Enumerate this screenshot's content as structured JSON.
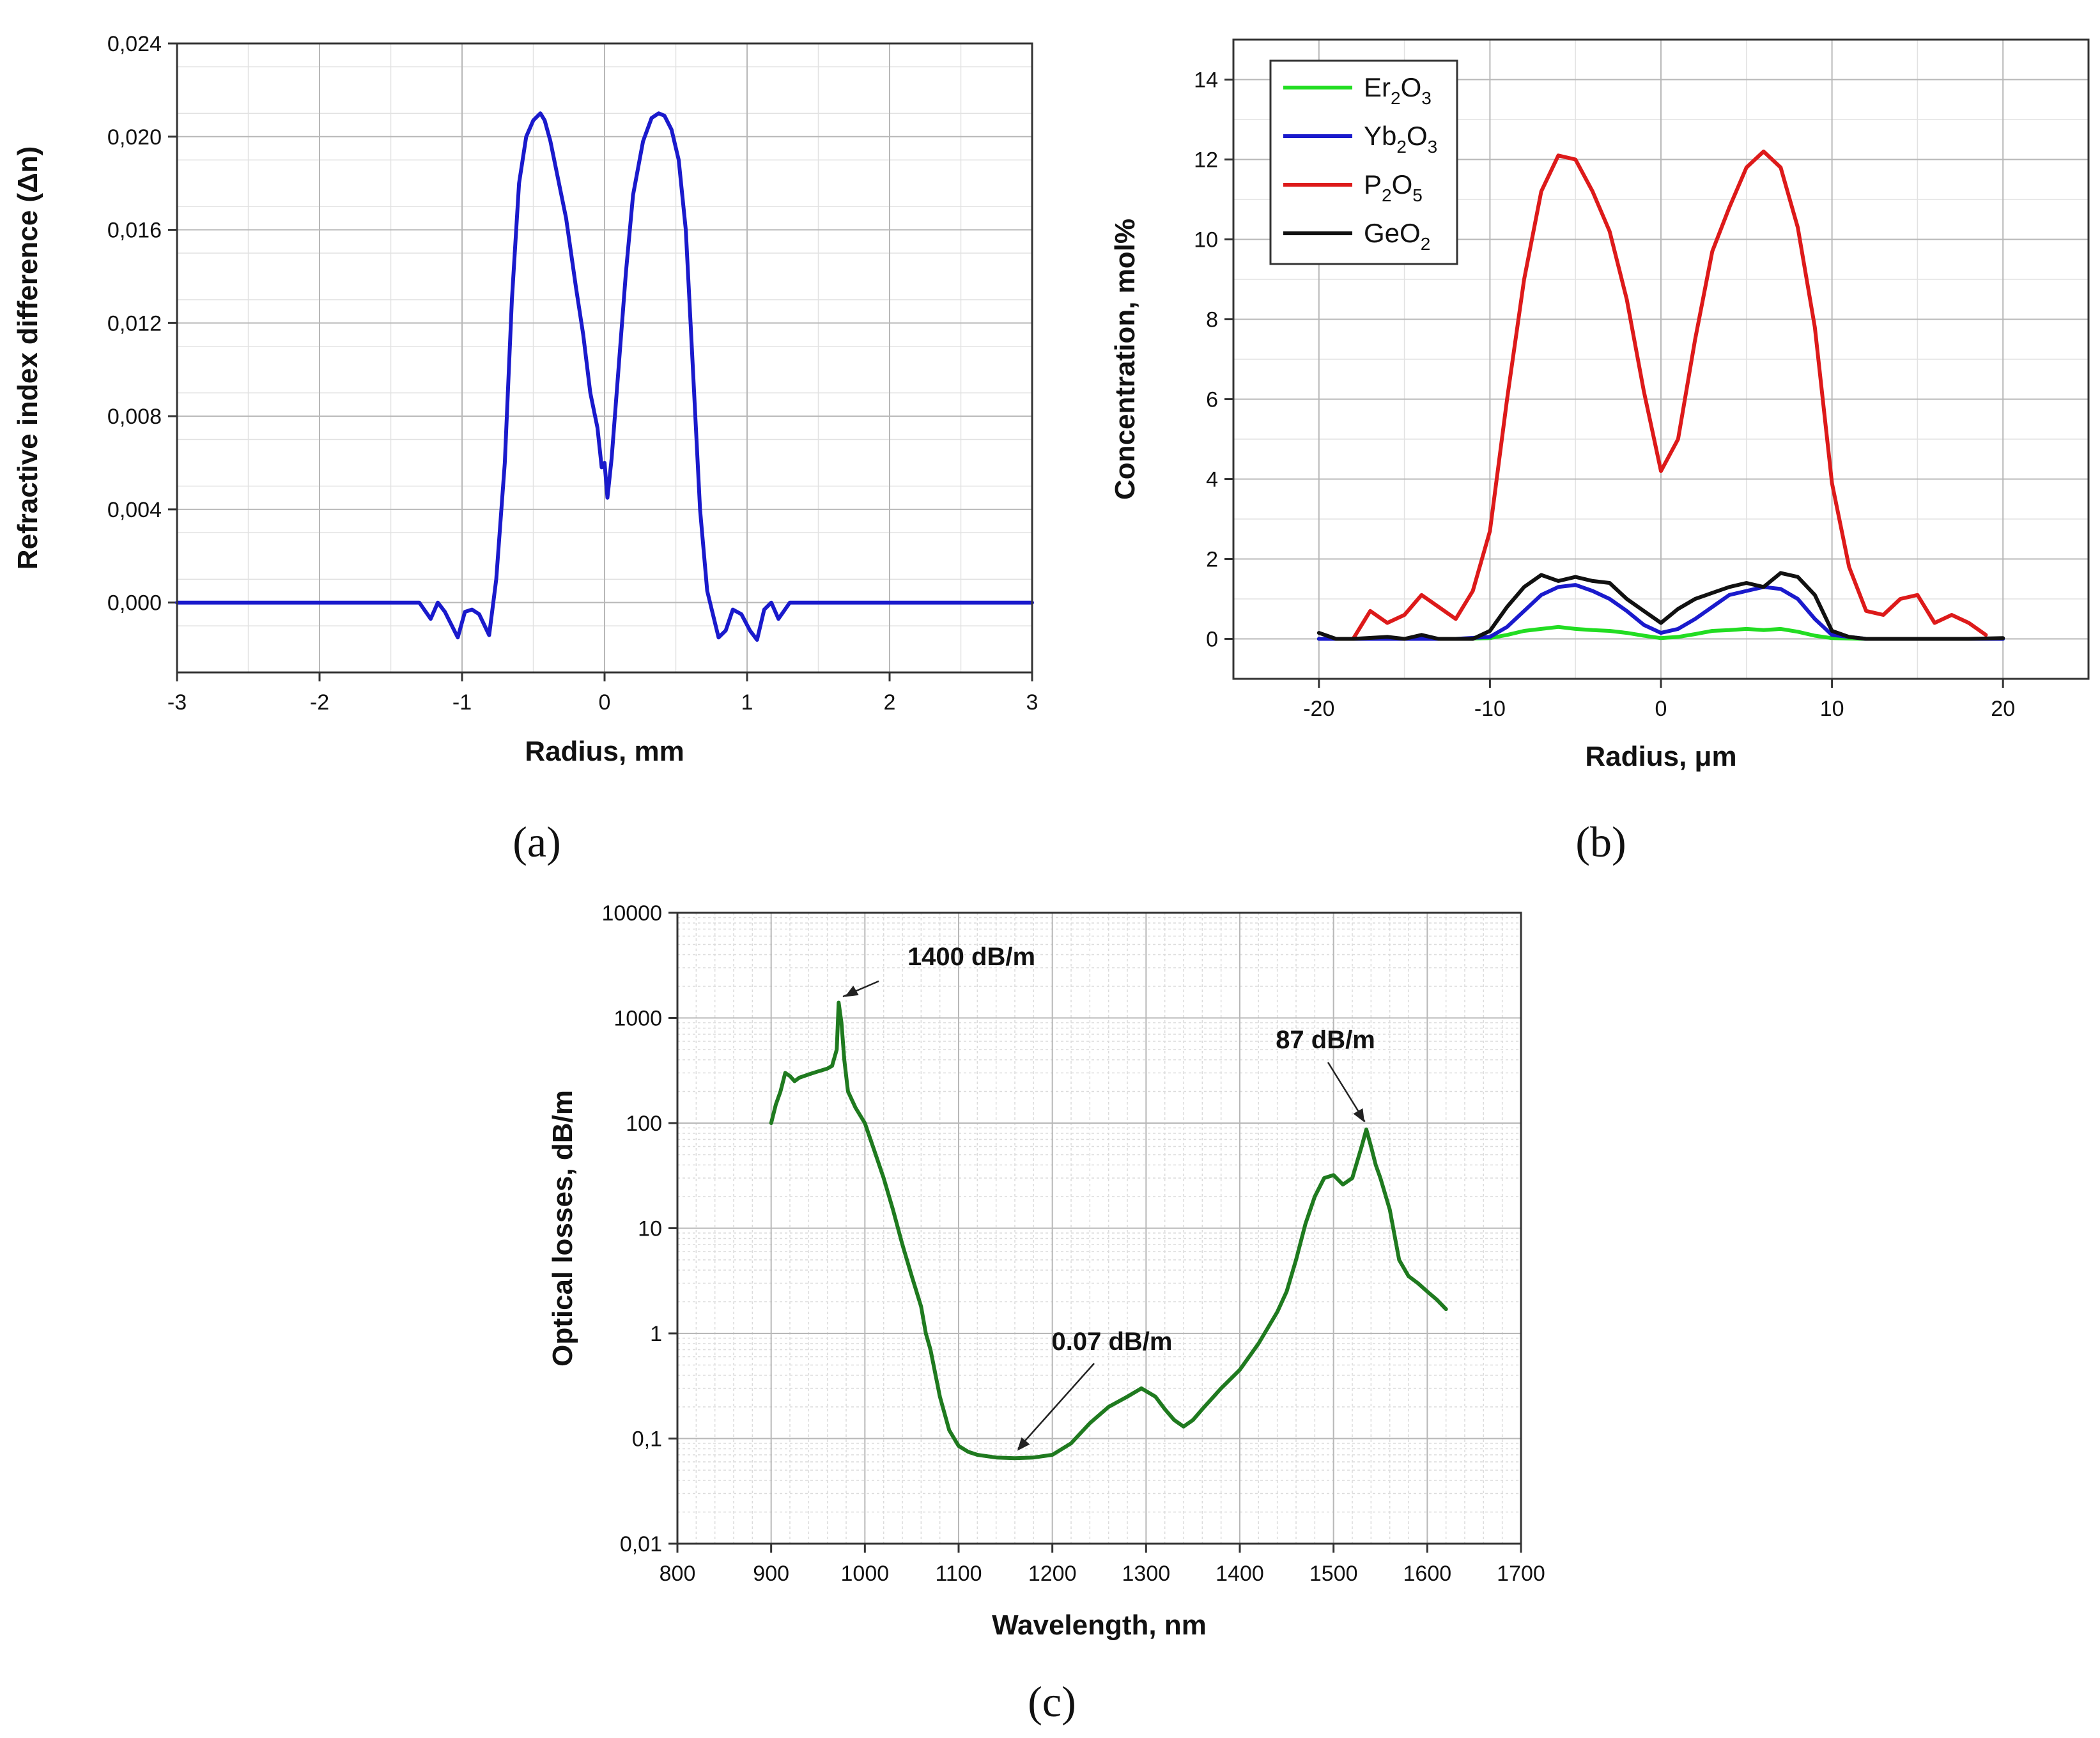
{
  "chart_data": [
    {
      "id": "a",
      "panel_label": "(a)",
      "type": "line",
      "title": "",
      "xlabel": "Radius, mm",
      "ylabel": "Refractive index difference (Δn)",
      "xlim": [
        -3,
        3
      ],
      "ylim": [
        -0.003,
        0.024
      ],
      "xticks": [
        -3,
        -2,
        -1,
        0,
        1,
        2,
        3
      ],
      "xtick_labels": [
        "-3",
        "-2",
        "-1",
        "0",
        "1",
        "2",
        "3"
      ],
      "yticks": [
        0.0,
        0.004,
        0.008,
        0.012,
        0.016,
        0.02,
        0.024
      ],
      "ytick_labels": [
        "0,000",
        "0,004",
        "0,008",
        "0,012",
        "0,016",
        "0,020",
        "0,024"
      ],
      "grid": true,
      "series": [
        {
          "name": "Δn",
          "color": "#1a1acc",
          "x": [
            -3.0,
            -1.3,
            -1.22,
            -1.17,
            -1.12,
            -1.03,
            -0.98,
            -0.93,
            -0.88,
            -0.81,
            -0.76,
            -0.7,
            -0.65,
            -0.6,
            -0.55,
            -0.5,
            -0.45,
            -0.42,
            -0.38,
            -0.33,
            -0.27,
            -0.2,
            -0.15,
            -0.1,
            -0.05,
            -0.02,
            0.0,
            0.02,
            0.05,
            0.1,
            0.15,
            0.2,
            0.27,
            0.33,
            0.38,
            0.42,
            0.47,
            0.52,
            0.57,
            0.62,
            0.67,
            0.72,
            0.76,
            0.8,
            0.85,
            0.9,
            0.96,
            1.02,
            1.07,
            1.12,
            1.17,
            1.22,
            1.3,
            3.0
          ],
          "y": [
            0.0,
            0.0,
            -0.0007,
            0.0,
            -0.0004,
            -0.0015,
            -0.0004,
            -0.0003,
            -0.0005,
            -0.0014,
            0.001,
            0.006,
            0.013,
            0.018,
            0.02,
            0.0207,
            0.021,
            0.0207,
            0.0198,
            0.0183,
            0.0165,
            0.0135,
            0.0115,
            0.009,
            0.0075,
            0.0058,
            0.006,
            0.0045,
            0.0062,
            0.0102,
            0.0142,
            0.0175,
            0.0198,
            0.0208,
            0.021,
            0.0209,
            0.0203,
            0.019,
            0.016,
            0.01,
            0.004,
            0.0005,
            -0.0005,
            -0.0015,
            -0.0012,
            -0.0003,
            -0.0005,
            -0.0012,
            -0.0016,
            -0.0003,
            0.0,
            -0.0007,
            0.0,
            0.0
          ]
        }
      ]
    },
    {
      "id": "b",
      "panel_label": "(b)",
      "type": "line",
      "title": "",
      "xlabel": "Radius, μm",
      "ylabel": "Concentration, mol%",
      "xlim": [
        -25,
        25
      ],
      "ylim": [
        -1,
        15
      ],
      "xticks": [
        -20,
        -10,
        0,
        10,
        20
      ],
      "xtick_labels": [
        "-20",
        "-10",
        "0",
        "10",
        "20"
      ],
      "yticks": [
        0,
        2,
        4,
        6,
        8,
        10,
        12,
        14
      ],
      "ytick_labels": [
        "0",
        "2",
        "4",
        "6",
        "8",
        "10",
        "12",
        "14"
      ],
      "grid": true,
      "legend_position": "top-left",
      "series": [
        {
          "name": "Er2O3",
          "legend_main": "Er",
          "legend_sub1": "2",
          "legend_mid": "O",
          "legend_sub2": "3",
          "color": "#22dd22",
          "x": [
            -20,
            -18,
            -16,
            -14,
            -12,
            -10,
            -9,
            -8,
            -7,
            -6,
            -5,
            -4,
            -3,
            -2,
            -1,
            0,
            1,
            2,
            3,
            4,
            5,
            6,
            7,
            8,
            9,
            10,
            12,
            14,
            16,
            18,
            20
          ],
          "y": [
            0,
            0,
            0,
            0,
            0,
            0.02,
            0.1,
            0.2,
            0.25,
            0.3,
            0.25,
            0.22,
            0.2,
            0.15,
            0.08,
            0.02,
            0.05,
            0.12,
            0.2,
            0.22,
            0.25,
            0.22,
            0.25,
            0.18,
            0.08,
            0.02,
            0,
            0,
            0,
            0,
            0
          ]
        },
        {
          "name": "Yb2O3",
          "legend_main": "Yb",
          "legend_sub1": "2",
          "legend_mid": "O",
          "legend_sub2": "3",
          "color": "#1a1acc",
          "x": [
            -20,
            -18,
            -16,
            -14,
            -12,
            -10,
            -9,
            -8,
            -7,
            -6,
            -5,
            -4,
            -3,
            -2,
            -1,
            0,
            1,
            2,
            3,
            4,
            5,
            6,
            7,
            8,
            9,
            10,
            12,
            14,
            16,
            18,
            20
          ],
          "y": [
            0,
            0,
            0,
            0,
            0,
            0.05,
            0.3,
            0.7,
            1.1,
            1.3,
            1.35,
            1.2,
            1.0,
            0.7,
            0.35,
            0.15,
            0.25,
            0.5,
            0.8,
            1.1,
            1.2,
            1.3,
            1.25,
            1.0,
            0.5,
            0.1,
            0,
            0,
            0,
            0,
            0
          ]
        },
        {
          "name": "P2O5",
          "legend_main": "P",
          "legend_sub1": "2",
          "legend_mid": "O",
          "legend_sub2": "5",
          "color": "#dd1a1a",
          "x": [
            -18,
            -17,
            -16,
            -15,
            -14,
            -13,
            -12,
            -11,
            -10,
            -9,
            -8,
            -7,
            -6,
            -5,
            -4,
            -3,
            -2,
            -1,
            0,
            1,
            2,
            3,
            4,
            5,
            6,
            7,
            8,
            9,
            10,
            11,
            12,
            13,
            14,
            15,
            16,
            17,
            18,
            19
          ],
          "y": [
            0,
            0.7,
            0.4,
            0.6,
            1.1,
            0.8,
            0.5,
            1.2,
            2.7,
            6.0,
            9.0,
            11.2,
            12.1,
            12.0,
            11.2,
            10.2,
            8.5,
            6.2,
            4.2,
            5.0,
            7.5,
            9.7,
            10.8,
            11.8,
            12.2,
            11.8,
            10.3,
            7.8,
            3.9,
            1.8,
            0.7,
            0.6,
            1.0,
            1.1,
            0.4,
            0.6,
            0.4,
            0.1
          ]
        },
        {
          "name": "GeO2",
          "legend_main": "GeO",
          "legend_sub1": "2",
          "legend_mid": "",
          "legend_sub2": "",
          "color": "#111111",
          "x": [
            -20,
            -19,
            -18,
            -16,
            -15,
            -14,
            -13,
            -12,
            -11,
            -10,
            -9,
            -8,
            -7,
            -6,
            -5,
            -4,
            -3,
            -2,
            -1,
            0,
            1,
            2,
            3,
            4,
            5,
            6,
            7,
            8,
            9,
            10,
            11,
            12,
            14,
            16,
            18,
            20
          ],
          "y": [
            0.15,
            0.0,
            0.0,
            0.05,
            0.0,
            0.1,
            0.0,
            0.0,
            0.0,
            0.2,
            0.8,
            1.3,
            1.6,
            1.45,
            1.55,
            1.45,
            1.4,
            1.0,
            0.7,
            0.4,
            0.75,
            1.0,
            1.15,
            1.3,
            1.4,
            1.3,
            1.65,
            1.55,
            1.1,
            0.2,
            0.05,
            0.0,
            0.0,
            0.0,
            0.0,
            0.02
          ]
        }
      ]
    },
    {
      "id": "c",
      "panel_label": "(c)",
      "type": "line",
      "title": "",
      "xlabel": "Wavelength, nm",
      "ylabel": "Optical losses, dB/m",
      "xscale": "linear",
      "yscale": "log",
      "xlim": [
        800,
        1700
      ],
      "ylim": [
        0.01,
        10000
      ],
      "xticks": [
        800,
        900,
        1000,
        1100,
        1200,
        1300,
        1400,
        1500,
        1600,
        1700
      ],
      "xtick_labels": [
        "800",
        "900",
        "1000",
        "1100",
        "1200",
        "1300",
        "1400",
        "1500",
        "1600",
        "1700"
      ],
      "yticks": [
        0.01,
        0.1,
        1,
        10,
        100,
        1000,
        10000
      ],
      "ytick_labels": [
        "0,01",
        "0,1",
        "1",
        "10",
        "100",
        "1000",
        "10000"
      ],
      "grid": true,
      "series": [
        {
          "name": "Optical losses",
          "color": "#1f7a1f",
          "x": [
            900,
            905,
            910,
            915,
            920,
            925,
            930,
            940,
            950,
            960,
            965,
            970,
            972,
            975,
            978,
            982,
            990,
            1000,
            1010,
            1020,
            1030,
            1040,
            1050,
            1060,
            1065,
            1070,
            1080,
            1090,
            1100,
            1110,
            1120,
            1140,
            1160,
            1180,
            1200,
            1220,
            1240,
            1260,
            1280,
            1295,
            1310,
            1320,
            1330,
            1340,
            1350,
            1360,
            1380,
            1400,
            1420,
            1440,
            1450,
            1460,
            1470,
            1480,
            1490,
            1500,
            1510,
            1520,
            1530,
            1535,
            1540,
            1545,
            1550,
            1560,
            1570,
            1580,
            1590,
            1600,
            1610,
            1620
          ],
          "y": [
            100,
            150,
            200,
            300,
            280,
            250,
            270,
            290,
            310,
            330,
            350,
            500,
            1400,
            900,
            400,
            200,
            140,
            100,
            55,
            30,
            15,
            7,
            3.5,
            1.8,
            1.0,
            0.7,
            0.25,
            0.12,
            0.085,
            0.075,
            0.07,
            0.066,
            0.065,
            0.066,
            0.07,
            0.09,
            0.14,
            0.2,
            0.25,
            0.3,
            0.25,
            0.19,
            0.15,
            0.13,
            0.15,
            0.19,
            0.3,
            0.45,
            0.8,
            1.6,
            2.5,
            5,
            11,
            20,
            30,
            32,
            26,
            30,
            60,
            87,
            60,
            40,
            30,
            15,
            5,
            3.5,
            3,
            2.5,
            2.1,
            1.7
          ]
        }
      ],
      "annotations": [
        {
          "text": "1400 dB/m",
          "x": 975,
          "y": 1400
        },
        {
          "text": "0.07 dB/m",
          "x": 1160,
          "y": 0.066
        },
        {
          "text": "87 dB/m",
          "x": 1535,
          "y": 87
        }
      ]
    }
  ]
}
